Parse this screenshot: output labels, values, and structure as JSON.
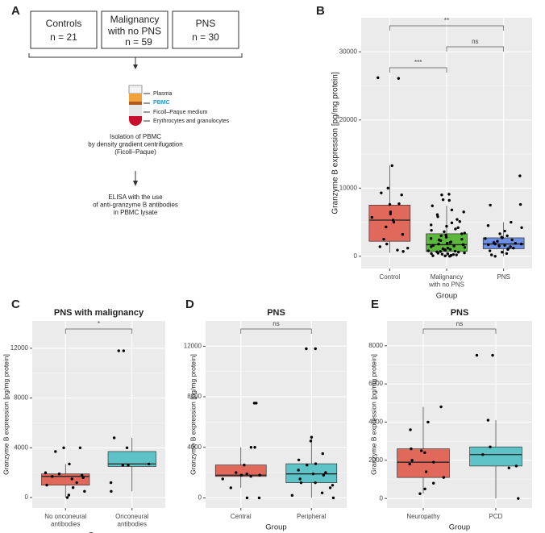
{
  "diagram": {
    "panel": "A",
    "groups": [
      {
        "name": "Controls",
        "n": "n = 21"
      },
      {
        "name": "Malignancy\nwith no PNS",
        "n": "n = 59"
      },
      {
        "name": "PNS",
        "n": "n = 30"
      }
    ],
    "tube_layers": [
      "Plasma",
      "PBMC",
      "Ficoll–Paque medium",
      "Erythrocytes and granulocytes"
    ],
    "steps": [
      "Isolation of PBMC\nby density gradient centrifugation\n(Ficoll–Paque)",
      "ELISA with the use\nof anti-granzyme B antibodies\nin PBMC lysate"
    ]
  },
  "chart_data": [
    {
      "type": "box",
      "panel": "B",
      "xlabel": "Group",
      "ylabel": "Granzyme B expression [pg/mg protein]",
      "categories": [
        "Control",
        "Malignancy\nwith no PNS",
        "PNS"
      ],
      "colors": [
        "#e0695c",
        "#5cb83c",
        "#6e8fe6"
      ],
      "boxes": [
        {
          "whisker_low": 500,
          "q1": 2200,
          "median": 5300,
          "q3": 7500,
          "whisker_high": 13300
        },
        {
          "whisker_low": 0,
          "q1": 700,
          "median": 1700,
          "q3": 3300,
          "whisker_high": 7400
        },
        {
          "whisker_low": 0,
          "q1": 1100,
          "median": 1800,
          "q3": 2700,
          "whisker_high": 5000
        }
      ],
      "points": [
        [
          26200,
          26100,
          13300,
          10000,
          9300,
          9000,
          7700,
          7600,
          6500,
          6200,
          5700,
          5300,
          5000,
          4300,
          3200,
          2500,
          1800,
          1400,
          1200,
          900,
          700
        ],
        [
          9100,
          9000,
          8300,
          8200,
          7400,
          6800,
          6500,
          6100,
          5800,
          5400,
          5100,
          4900,
          4600,
          4400,
          4200,
          4000,
          3800,
          3600,
          3400,
          3300,
          3100,
          3000,
          2800,
          2600,
          2500,
          2400,
          2300,
          2100,
          2000,
          1900,
          1800,
          1700,
          1700,
          1600,
          1500,
          1400,
          1300,
          1200,
          1100,
          1000,
          950,
          900,
          800,
          750,
          700,
          650,
          600,
          500,
          450,
          400,
          350,
          300,
          250,
          200,
          150,
          100,
          80,
          50,
          0
        ],
        [
          11800,
          7600,
          7500,
          5000,
          4500,
          4200,
          3700,
          3300,
          3000,
          2800,
          2700,
          2600,
          2400,
          2200,
          2000,
          1900,
          1800,
          1800,
          1700,
          1600,
          1500,
          1400,
          1200,
          1100,
          1000,
          800,
          600,
          400,
          200,
          0
        ]
      ],
      "brackets": [
        {
          "from": "Control",
          "to": "Malignancy\nwith no PNS",
          "label": "***"
        },
        {
          "from": "Malignancy\nwith no PNS",
          "to": "PNS",
          "label": "ns"
        },
        {
          "from": "Control",
          "to": "PNS",
          "label": "**"
        }
      ],
      "ylim": [
        -1800,
        35000
      ],
      "yticks": [
        0,
        10000,
        20000,
        30000
      ],
      "grid": true,
      "panel_color": "#ebebeb"
    },
    {
      "type": "box",
      "panel": "C",
      "title": "PNS with malignancy",
      "xlabel": "Group",
      "ylabel": "Granzyme B expression [pg/mg protein]",
      "categories": [
        "No onconeural\nantibodies",
        "Onconeural\nantibodies"
      ],
      "colors": [
        "#e0695c",
        "#5ec3c6"
      ],
      "boxes": [
        {
          "whisker_low": 0,
          "q1": 1000,
          "median": 1700,
          "q3": 1900,
          "whisker_high": 2700
        },
        {
          "whisker_low": 500,
          "q1": 2500,
          "median": 2700,
          "q3": 3700,
          "whisker_high": 4800
        }
      ],
      "points": [
        [
          4000,
          4000,
          3700,
          2700,
          2000,
          1900,
          1800,
          1700,
          1600,
          1500,
          1200,
          1000,
          800,
          500,
          200,
          0
        ],
        [
          11800,
          11800,
          4800,
          4000,
          2700,
          2600,
          2600,
          1200,
          500
        ]
      ],
      "brackets": [
        {
          "from": "No onconeural\nantibodies",
          "to": "Onconeural\nantibodies",
          "label": "*"
        }
      ],
      "ylim": [
        -840,
        14200
      ],
      "yticks": [
        0,
        4000,
        8000,
        12000
      ],
      "grid": true,
      "panel_color": "#ebebeb"
    },
    {
      "type": "box",
      "panel": "D",
      "title": "PNS",
      "xlabel": "Group",
      "ylabel": "Granzyme B expression [pg/mg protein]",
      "categories": [
        "Central",
        "Peripheral"
      ],
      "colors": [
        "#e0695c",
        "#5ec3c6"
      ],
      "boxes": [
        {
          "whisker_low": 800,
          "q1": 1700,
          "median": 1800,
          "q3": 2600,
          "whisker_high": 4000
        },
        {
          "whisker_low": 0,
          "q1": 1200,
          "median": 1900,
          "q3": 2700,
          "whisker_high": 4800
        }
      ],
      "points": [
        [
          7500,
          7500,
          4000,
          4000,
          2600,
          2000,
          1900,
          1800,
          1800,
          1700,
          1500,
          800,
          0,
          0
        ],
        [
          11800,
          11800,
          4800,
          4500,
          3500,
          3000,
          2700,
          2600,
          2200,
          2000,
          1900,
          1800,
          1500,
          1200,
          1200,
          1000,
          800,
          400,
          200,
          0
        ]
      ],
      "brackets": [
        {
          "from": "Central",
          "to": "Peripheral",
          "label": "ns"
        }
      ],
      "ylim": [
        -800,
        14000
      ],
      "yticks": [
        0,
        4000,
        8000,
        12000
      ],
      "grid": true,
      "panel_color": "#ebebeb"
    },
    {
      "type": "box",
      "panel": "E",
      "title": "PNS",
      "xlabel": "Group",
      "ylabel": "Granzyme B expression [pg/mg protein]",
      "categories": [
        "Neuropathy",
        "PCD"
      ],
      "colors": [
        "#e0695c",
        "#5ec3c6"
      ],
      "boxes": [
        {
          "whisker_low": 250,
          "q1": 1100,
          "median": 1900,
          "q3": 2600,
          "whisker_high": 4800
        },
        {
          "whisker_low": 0,
          "q1": 1700,
          "median": 2300,
          "q3": 2700,
          "whisker_high": 4100
        }
      ],
      "points": [
        [
          4800,
          4000,
          3600,
          2600,
          2500,
          2400,
          2000,
          1900,
          1800,
          1400,
          1100,
          800,
          500,
          250
        ],
        [
          7500,
          7500,
          4100,
          2700,
          2300,
          1700,
          1600,
          0
        ]
      ],
      "brackets": [
        {
          "from": "Neuropathy",
          "to": "PCD",
          "label": "ns"
        }
      ],
      "ylim": [
        -500,
        9300
      ],
      "yticks": [
        0,
        2000,
        4000,
        6000,
        8000
      ],
      "grid": true,
      "panel_color": "#ebebeb"
    }
  ]
}
